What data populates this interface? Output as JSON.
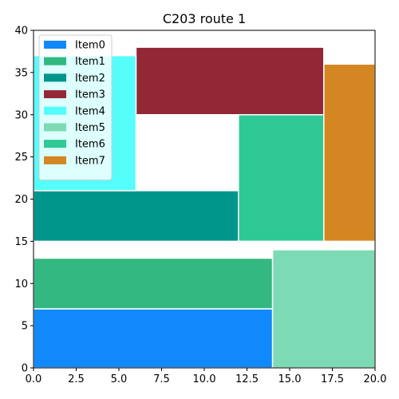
{
  "chart_data": {
    "type": "bar",
    "title": "C203 route 1",
    "xlabel": "",
    "ylabel": "",
    "xlim": [
      0,
      20
    ],
    "ylim": [
      0,
      40
    ],
    "x_ticks": [
      "0.0",
      "2.5",
      "5.0",
      "7.5",
      "10.0",
      "12.5",
      "15.0",
      "17.5",
      "20.0"
    ],
    "y_ticks": [
      "0",
      "5",
      "10",
      "15",
      "20",
      "25",
      "30",
      "35",
      "40"
    ],
    "grid": false,
    "legend_position": "top-left",
    "series": [
      {
        "name": "Item0",
        "color": "#1289fb",
        "rect": {
          "x0": 0,
          "x1": 14,
          "y0": 0,
          "y1": 7
        }
      },
      {
        "name": "Item1",
        "color": "#33b882",
        "rect": {
          "x0": 0,
          "x1": 14,
          "y0": 7,
          "y1": 13
        }
      },
      {
        "name": "Item2",
        "color": "#00968c",
        "rect": {
          "x0": 0,
          "x1": 12,
          "y0": 15,
          "y1": 21
        }
      },
      {
        "name": "Item3",
        "color": "#922836",
        "rect": {
          "x0": 6,
          "x1": 17,
          "y0": 30,
          "y1": 38
        }
      },
      {
        "name": "Item4",
        "color": "#55fdfb",
        "rect": {
          "x0": 0,
          "x1": 6,
          "y0": 21,
          "y1": 37
        }
      },
      {
        "name": "Item5",
        "color": "#7cdab4",
        "rect": {
          "x0": 14,
          "x1": 20,
          "y0": 0,
          "y1": 14
        }
      },
      {
        "name": "Item6",
        "color": "#2ec994",
        "rect": {
          "x0": 12,
          "x1": 17,
          "y0": 15,
          "y1": 30
        }
      },
      {
        "name": "Item7",
        "color": "#d38622",
        "rect": {
          "x0": 17,
          "x1": 20,
          "y0": 15,
          "y1": 36
        }
      }
    ]
  }
}
